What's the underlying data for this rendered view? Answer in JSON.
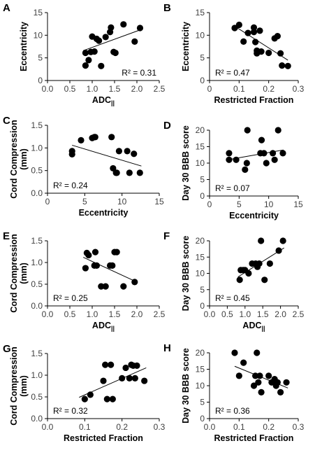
{
  "chart_data": [
    {
      "panel": "A",
      "type": "scatter",
      "xlabel": "ADC",
      "xlabel_sub": "||",
      "ylabel": "Eccentricity",
      "xlim": [
        0,
        2.5
      ],
      "ylim": [
        0,
        15
      ],
      "xticks": [
        "0.0",
        "0.5",
        "1.0",
        "1.5",
        "2.0",
        "2.5"
      ],
      "xtick_values": [
        0,
        0.5,
        1,
        1.5,
        2,
        2.5
      ],
      "yticks": [
        "0",
        "5",
        "10",
        "15"
      ],
      "ytick_values": [
        0,
        5,
        10,
        15
      ],
      "r2": "R² = 0.31",
      "r2_pos": "bottom-right",
      "trend": [
        [
          0.8,
          6.6
        ],
        [
          2.05,
          11.1
        ]
      ],
      "points": [
        [
          0.85,
          6.1
        ],
        [
          0.85,
          3.3
        ],
        [
          0.92,
          4.5
        ],
        [
          0.97,
          6.3
        ],
        [
          1.0,
          9.7
        ],
        [
          1.05,
          6.4
        ],
        [
          1.1,
          9.2
        ],
        [
          1.15,
          8.8
        ],
        [
          1.2,
          3.2
        ],
        [
          1.3,
          9.6
        ],
        [
          1.4,
          10.7
        ],
        [
          1.42,
          11.7
        ],
        [
          1.48,
          6.3
        ],
        [
          1.52,
          6.1
        ],
        [
          1.7,
          12.4
        ],
        [
          1.95,
          8.6
        ],
        [
          2.07,
          11.6
        ]
      ]
    },
    {
      "panel": "B",
      "type": "scatter",
      "xlabel": "Restricted Fraction",
      "ylabel": "Eccentricity",
      "xlim": [
        0,
        0.3
      ],
      "ylim": [
        0,
        15
      ],
      "xticks": [
        "0",
        "0.1",
        "0.2",
        "0.3"
      ],
      "xtick_values": [
        0,
        0.1,
        0.2,
        0.3
      ],
      "yticks": [
        "0",
        "5",
        "10",
        "15"
      ],
      "ytick_values": [
        0,
        5,
        10,
        15
      ],
      "r2": "R² = 0.47",
      "r2_pos": "bottom-left",
      "trend": [
        [
          0.085,
          12.0
        ],
        [
          0.265,
          4.5
        ]
      ],
      "points": [
        [
          0.085,
          11.6
        ],
        [
          0.1,
          12.3
        ],
        [
          0.115,
          8.6
        ],
        [
          0.13,
          10.5
        ],
        [
          0.15,
          11.7
        ],
        [
          0.15,
          10.7
        ],
        [
          0.155,
          8.5
        ],
        [
          0.16,
          6.6
        ],
        [
          0.16,
          6.0
        ],
        [
          0.17,
          11.0
        ],
        [
          0.175,
          6.4
        ],
        [
          0.2,
          6.1
        ],
        [
          0.22,
          9.3
        ],
        [
          0.23,
          9.8
        ],
        [
          0.24,
          6.0
        ],
        [
          0.245,
          3.3
        ],
        [
          0.265,
          3.2
        ]
      ]
    },
    {
      "panel": "C",
      "type": "scatter",
      "xlabel": "Eccentricity",
      "ylabel": "Cord Compression",
      "ylabel2": "(mm)",
      "xlim": [
        0,
        15
      ],
      "ylim": [
        0,
        1.5
      ],
      "xticks": [
        "0",
        "5",
        "10",
        "15"
      ],
      "xtick_values": [
        0,
        5,
        10,
        15
      ],
      "yticks": [
        "0.0",
        "0.5",
        "1.0",
        "1.5"
      ],
      "ytick_values": [
        0,
        0.5,
        1,
        1.5
      ],
      "r2": "R² = 0.24",
      "r2_pos": "bottom-left",
      "trend": [
        [
          3.3,
          1.06
        ],
        [
          12.6,
          0.6
        ]
      ],
      "points": [
        [
          3.3,
          0.93
        ],
        [
          3.3,
          0.86
        ],
        [
          4.5,
          1.17
        ],
        [
          6.0,
          1.22
        ],
        [
          6.3,
          1.24
        ],
        [
          6.4,
          1.24
        ],
        [
          8.6,
          1.24
        ],
        [
          8.8,
          0.55
        ],
        [
          9.2,
          0.45
        ],
        [
          9.3,
          0.45
        ],
        [
          9.6,
          0.93
        ],
        [
          10.7,
          0.93
        ],
        [
          11.0,
          0.45
        ],
        [
          11.6,
          0.87
        ],
        [
          12.4,
          0.45
        ]
      ]
    },
    {
      "panel": "D",
      "type": "scatter",
      "xlabel": "Eccentricity",
      "ylabel": "Day 30 BBB score",
      "xlim": [
        0,
        15
      ],
      "ylim": [
        0,
        20
      ],
      "xticks": [
        "0",
        "5",
        "10",
        "15"
      ],
      "xtick_values": [
        0,
        5,
        10,
        15
      ],
      "yticks": [
        "0",
        "5",
        "10",
        "15",
        "20"
      ],
      "ytick_values": [
        0,
        5,
        10,
        15,
        20
      ],
      "r2": "R² = 0.07",
      "r2_pos": "bottom-left",
      "trend": [
        [
          3.3,
          11.1
        ],
        [
          12.5,
          14.0
        ]
      ],
      "points": [
        [
          3.3,
          13.0
        ],
        [
          3.3,
          11.0
        ],
        [
          4.5,
          11.0
        ],
        [
          6.0,
          8.0
        ],
        [
          6.3,
          10.0
        ],
        [
          6.4,
          20.0
        ],
        [
          8.6,
          13.0
        ],
        [
          8.8,
          17.0
        ],
        [
          9.2,
          13.0
        ],
        [
          9.6,
          10.0
        ],
        [
          10.7,
          13.0
        ],
        [
          11.0,
          11.0
        ],
        [
          11.6,
          20.0
        ],
        [
          12.4,
          13.0
        ]
      ]
    },
    {
      "panel": "E",
      "type": "scatter",
      "xlabel": "ADC",
      "xlabel_sub": "||",
      "ylabel": "Cord Compression",
      "ylabel2": "(mm)",
      "xlim": [
        0,
        2.5
      ],
      "ylim": [
        0,
        1.5
      ],
      "xticks": [
        "0.0",
        "0.5",
        "1.0",
        "1.5",
        "2.0",
        "2.5"
      ],
      "xtick_values": [
        0,
        0.5,
        1,
        1.5,
        2,
        2.5
      ],
      "yticks": [
        "0.0",
        "0.5",
        "1.0",
        "1.5"
      ],
      "ytick_values": [
        0,
        0.5,
        1,
        1.5
      ],
      "r2": "R² = 0.25",
      "r2_pos": "bottom-left",
      "trend": [
        [
          0.8,
          1.12
        ],
        [
          2.0,
          0.55
        ]
      ],
      "points": [
        [
          0.85,
          0.87
        ],
        [
          0.88,
          1.22
        ],
        [
          0.92,
          1.17
        ],
        [
          1.05,
          0.93
        ],
        [
          1.07,
          1.24
        ],
        [
          1.1,
          0.93
        ],
        [
          1.2,
          0.45
        ],
        [
          1.3,
          0.45
        ],
        [
          1.4,
          0.93
        ],
        [
          1.45,
          0.93
        ],
        [
          1.5,
          1.24
        ],
        [
          1.55,
          1.24
        ],
        [
          1.7,
          0.45
        ],
        [
          1.95,
          0.55
        ]
      ]
    },
    {
      "panel": "F",
      "type": "scatter",
      "xlabel": "ADC",
      "xlabel_sub": "||",
      "ylabel": "Day 30 BBB score",
      "xlim": [
        0,
        2.5
      ],
      "ylim": [
        0,
        20
      ],
      "xticks": [
        "0.0",
        "0.5",
        "1.0",
        "1.5",
        "2.0",
        "2.5"
      ],
      "xtick_values": [
        0,
        0.5,
        1,
        1.5,
        2,
        2.5
      ],
      "yticks": [
        "0",
        "5",
        "10",
        "15",
        "20"
      ],
      "ytick_values": [
        0,
        5,
        10,
        15,
        20
      ],
      "r2": "R² = 0.45",
      "r2_pos": "bottom-left",
      "trend": [
        [
          0.8,
          8.9
        ],
        [
          2.1,
          17.8
        ]
      ],
      "points": [
        [
          0.85,
          8.0
        ],
        [
          0.88,
          11.0
        ],
        [
          0.95,
          11.0
        ],
        [
          1.0,
          11.0
        ],
        [
          1.1,
          10.0
        ],
        [
          1.2,
          13.0
        ],
        [
          1.3,
          13.0
        ],
        [
          1.35,
          12.0
        ],
        [
          1.4,
          13.0
        ],
        [
          1.45,
          20.0
        ],
        [
          1.55,
          8.0
        ],
        [
          1.7,
          13.0
        ],
        [
          1.95,
          17.0
        ],
        [
          2.07,
          20.0
        ]
      ]
    },
    {
      "panel": "G",
      "type": "scatter",
      "xlabel": "Restricted Fraction",
      "ylabel": "Cord Compression",
      "ylabel2": "(mm)",
      "xlim": [
        0,
        0.3
      ],
      "ylim": [
        0,
        1.5
      ],
      "xticks": [
        "0.0",
        "0.1",
        "0.2",
        "0.3"
      ],
      "xtick_values": [
        0,
        0.1,
        0.2,
        0.3
      ],
      "yticks": [
        "0.0",
        "0.5",
        "1.0",
        "1.5"
      ],
      "ytick_values": [
        0,
        0.5,
        1,
        1.5
      ],
      "r2": "R² = 0.32",
      "r2_pos": "bottom-left",
      "trend": [
        [
          0.085,
          0.49
        ],
        [
          0.265,
          1.17
        ]
      ],
      "points": [
        [
          0.1,
          0.45
        ],
        [
          0.115,
          0.55
        ],
        [
          0.15,
          0.87
        ],
        [
          0.155,
          1.24
        ],
        [
          0.16,
          0.45
        ],
        [
          0.17,
          1.24
        ],
        [
          0.175,
          0.45
        ],
        [
          0.2,
          0.93
        ],
        [
          0.21,
          1.17
        ],
        [
          0.22,
          0.93
        ],
        [
          0.225,
          1.24
        ],
        [
          0.23,
          1.22
        ],
        [
          0.235,
          0.93
        ],
        [
          0.24,
          1.22
        ],
        [
          0.26,
          0.87
        ]
      ]
    },
    {
      "panel": "H",
      "type": "scatter",
      "xlabel": "Restricted Fraction",
      "ylabel": "Day 30 BBB score",
      "xlim": [
        0,
        0.3
      ],
      "ylim": [
        0,
        20
      ],
      "xticks": [
        "0.0",
        "0.1",
        "0.2",
        "0.3"
      ],
      "xtick_values": [
        0,
        0.1,
        0.2,
        0.3
      ],
      "yticks": [
        "0",
        "5",
        "10",
        "15",
        "20"
      ],
      "ytick_values": [
        0,
        5,
        10,
        15,
        20
      ],
      "r2": "R² = 0.36",
      "r2_pos": "bottom-left",
      "trend": [
        [
          0.085,
          15.9
        ],
        [
          0.265,
          9.3
        ]
      ],
      "points": [
        [
          0.085,
          20.0
        ],
        [
          0.1,
          13.0
        ],
        [
          0.115,
          17.0
        ],
        [
          0.15,
          10.0
        ],
        [
          0.155,
          13.0
        ],
        [
          0.16,
          20.0
        ],
        [
          0.165,
          11.0
        ],
        [
          0.17,
          13.0
        ],
        [
          0.175,
          8.0
        ],
        [
          0.2,
          13.0
        ],
        [
          0.21,
          11.0
        ],
        [
          0.22,
          12.0
        ],
        [
          0.225,
          10.0
        ],
        [
          0.23,
          11.0
        ],
        [
          0.24,
          8.0
        ],
        [
          0.26,
          11.0
        ]
      ]
    }
  ]
}
